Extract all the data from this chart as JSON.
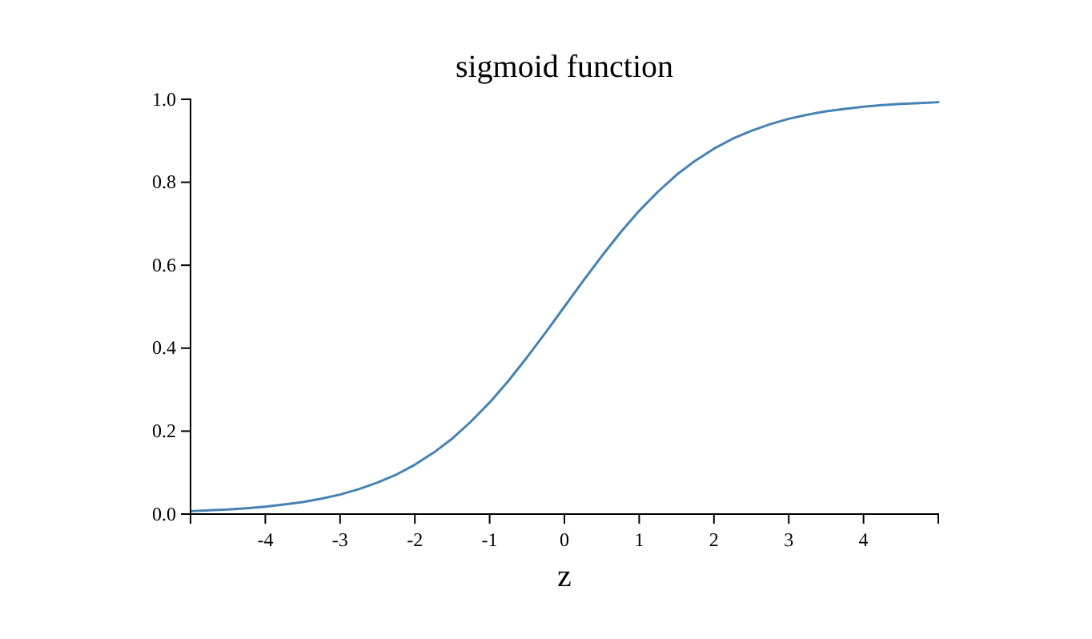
{
  "chart_data": {
    "type": "line",
    "title": "sigmoid function",
    "xlabel": "z",
    "x": [
      -5,
      -4.75,
      -4.5,
      -4.25,
      -4,
      -3.75,
      -3.5,
      -3.25,
      -3,
      -2.75,
      -2.5,
      -2.25,
      -2,
      -1.75,
      -1.5,
      -1.25,
      -1,
      -0.75,
      -0.5,
      -0.25,
      0,
      0.25,
      0.5,
      0.75,
      1,
      1.25,
      1.5,
      1.75,
      2,
      2.25,
      2.5,
      2.75,
      3,
      3.25,
      3.5,
      3.75,
      4,
      4.25,
      4.5,
      4.75,
      5
    ],
    "series": [
      {
        "color": "#4682b4",
        "values": [
          0.007,
          0.009,
          0.011,
          0.014,
          0.018,
          0.023,
          0.029,
          0.037,
          0.047,
          0.06,
          0.076,
          0.095,
          0.119,
          0.148,
          0.182,
          0.223,
          0.269,
          0.321,
          0.378,
          0.438,
          0.5,
          0.562,
          0.622,
          0.679,
          0.731,
          0.777,
          0.818,
          0.852,
          0.881,
          0.905,
          0.924,
          0.94,
          0.953,
          0.963,
          0.971,
          0.977,
          0.982,
          0.986,
          0.989,
          0.991,
          0.993
        ]
      }
    ],
    "xlim": [
      -5,
      5
    ],
    "xticks": [
      -4,
      -3,
      -2,
      -1,
      0,
      1,
      2,
      3,
      4
    ],
    "ylim": [
      0,
      1
    ],
    "yticks": [
      {
        "value": 0,
        "label": "0.0"
      },
      {
        "value": 0.2,
        "label": "0.2"
      },
      {
        "value": 0.4,
        "label": "0.4"
      },
      {
        "value": 0.6,
        "label": "0.6"
      },
      {
        "value": 0.8,
        "label": "0.8"
      },
      {
        "value": 1,
        "label": "1.0"
      }
    ],
    "grid": false,
    "marker": "none",
    "line_style": "solid"
  }
}
